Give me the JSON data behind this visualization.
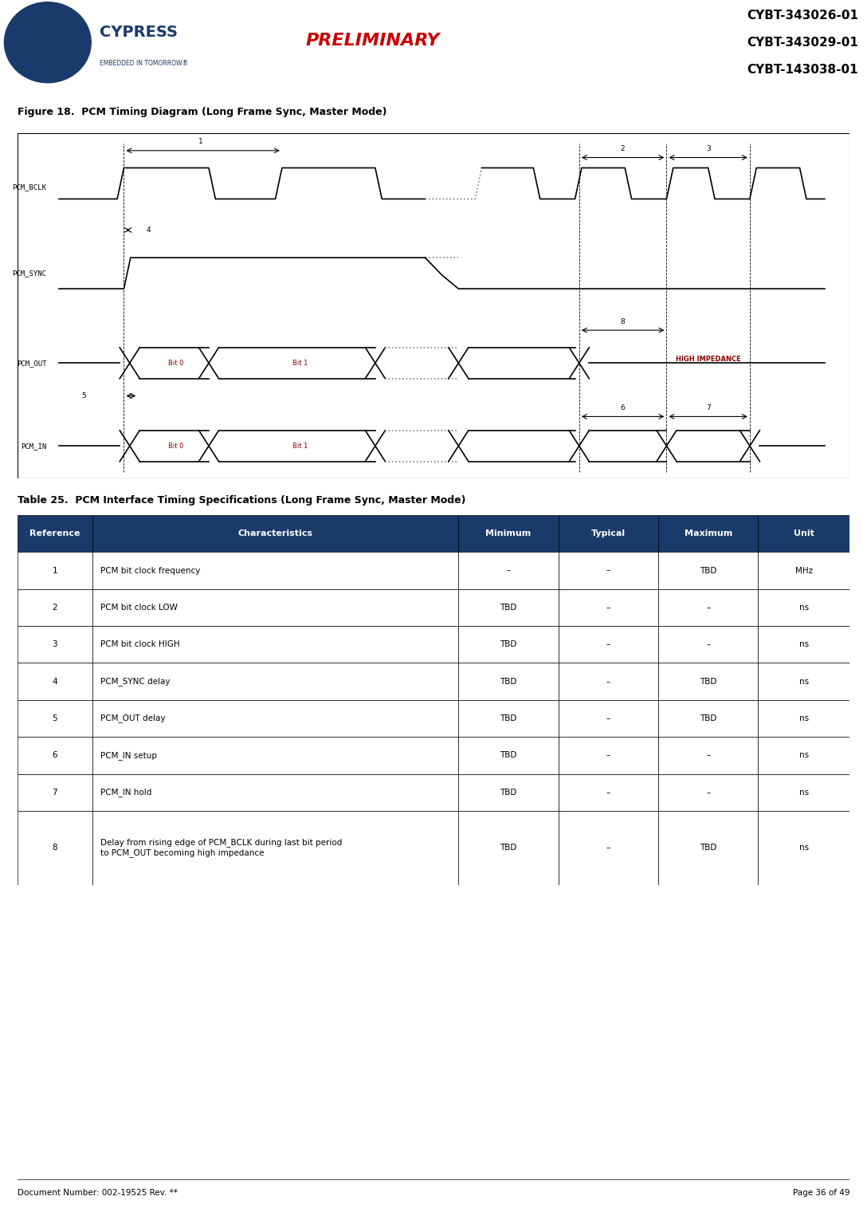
{
  "page_title_lines": [
    "CYBT-343026-01",
    "CYBT-343029-01",
    "CYBT-143038-01"
  ],
  "preliminary_text": "PRELIMINARY",
  "figure_title": "Figure 18.  PCM Timing Diagram (Long Frame Sync, Master Mode)",
  "table_title": "Table 25.  PCM Interface Timing Specifications (Long Frame Sync, Master Mode)",
  "table_headers": [
    "Reference",
    "Characteristics",
    "Minimum",
    "Typical",
    "Maximum",
    "Unit"
  ],
  "table_rows": [
    [
      "1",
      "PCM bit clock frequency",
      "–",
      "–",
      "TBD",
      "MHz"
    ],
    [
      "2",
      "PCM bit clock LOW",
      "TBD",
      "–",
      "–",
      "ns"
    ],
    [
      "3",
      "PCM bit clock HIGH",
      "TBD",
      "–",
      "–",
      "ns"
    ],
    [
      "4",
      "PCM_SYNC delay",
      "TBD",
      "–",
      "TBD",
      "ns"
    ],
    [
      "5",
      "PCM_OUT delay",
      "TBD",
      "–",
      "TBD",
      "ns"
    ],
    [
      "6",
      "PCM_IN setup",
      "TBD",
      "–",
      "–",
      "ns"
    ],
    [
      "7",
      "PCM_IN hold",
      "TBD",
      "–",
      "–",
      "ns"
    ],
    [
      "8",
      "Delay from rising edge of PCM_BCLK during last bit period\nto PCM_OUT becoming high impedance",
      "TBD",
      "–",
      "TBD",
      "ns"
    ]
  ],
  "footer_left": "Document Number: 002-19525 Rev. **",
  "footer_right": "Page 36 of 49",
  "header_line_color": "#1a3a6b",
  "table_header_bg": "#1a3a6b",
  "table_header_fg": "#ffffff",
  "signal_color": "#000000",
  "diagram_box_color": "#e0e0e0",
  "cypress_blue": "#1a3a6b",
  "preliminary_color": "#cc0000"
}
